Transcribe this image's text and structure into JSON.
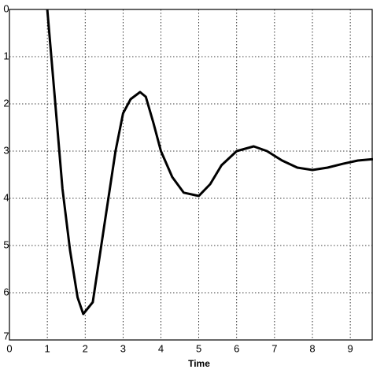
{
  "chart_data": {
    "type": "line",
    "x_label": "Time",
    "x": [
      1,
      1.2,
      1.4,
      1.6,
      1.8,
      1.95,
      2.2,
      2.5,
      2.8,
      3.0,
      3.2,
      3.45,
      3.6,
      3.8,
      4.0,
      4.3,
      4.6,
      5.0,
      5.3,
      5.6,
      6.0,
      6.45,
      6.8,
      7.2,
      7.6,
      8.0,
      8.4,
      8.8,
      9.2,
      9.6
    ],
    "series": [
      {
        "color": "#000000",
        "values": [
          0,
          1.9,
          3.8,
          5.1,
          6.1,
          6.45,
          6.2,
          4.6,
          3.0,
          2.2,
          1.9,
          1.75,
          1.85,
          2.4,
          3.0,
          3.55,
          3.88,
          3.95,
          3.7,
          3.3,
          3.0,
          2.9,
          3.0,
          3.2,
          3.35,
          3.4,
          3.35,
          3.27,
          3.2,
          3.17
        ]
      }
    ],
    "xlim": [
      0,
      9.6
    ],
    "xticks": [
      0,
      1,
      2,
      3,
      4,
      5,
      6,
      7,
      8,
      9
    ],
    "ylim": [
      0,
      7
    ],
    "yticks": [
      0,
      1,
      2,
      3,
      4,
      5,
      6,
      7
    ],
    "y_inverted": true,
    "grid": true
  }
}
